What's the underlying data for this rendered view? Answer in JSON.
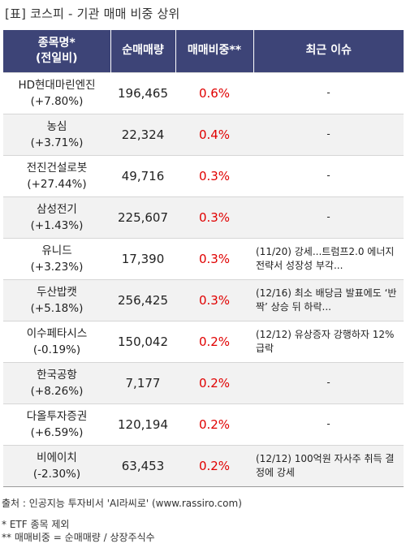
{
  "title": "[표] 코스피 - 기관 매매 비중 상위",
  "header": {
    "name_line1": "종목명*",
    "name_line2": "(전일비)",
    "volume": "순매매량",
    "ratio": "매매비중**",
    "issue": "최근 이슈"
  },
  "rows": [
    {
      "name": "HD현대마린엔진",
      "change": "(+7.80%)",
      "volume": "196,465",
      "ratio": "0.6%",
      "issue": "-"
    },
    {
      "name": "농심",
      "change": "(+3.71%)",
      "volume": "22,324",
      "ratio": "0.4%",
      "issue": "-"
    },
    {
      "name": "전진건설로봇",
      "change": "(+27.44%)",
      "volume": "49,716",
      "ratio": "0.3%",
      "issue": "-"
    },
    {
      "name": "삼성전기",
      "change": "(+1.43%)",
      "volume": "225,607",
      "ratio": "0.3%",
      "issue": "-"
    },
    {
      "name": "유니드",
      "change": "(+3.23%)",
      "volume": "17,390",
      "ratio": "0.3%",
      "issue": "(11/20) 강세...트럼프2.0 에너지 전략서 성장성 부각..."
    },
    {
      "name": "두산밥캣",
      "change": "(+5.18%)",
      "volume": "256,425",
      "ratio": "0.3%",
      "issue": "(12/16) 최소 배당금 발표에도 ‘반짝’ 상승 뒤 하락..."
    },
    {
      "name": "이수페타시스",
      "change": "(-0.19%)",
      "volume": "150,042",
      "ratio": "0.2%",
      "issue": "(12/12) 유상증자 강행하자 12% 급락"
    },
    {
      "name": "한국공항",
      "change": "(+8.26%)",
      "volume": "7,177",
      "ratio": "0.2%",
      "issue": "-"
    },
    {
      "name": "다올투자증권",
      "change": "(+6.59%)",
      "volume": "120,194",
      "ratio": "0.2%",
      "issue": "-"
    },
    {
      "name": "비에이치",
      "change": "(-2.30%)",
      "volume": "63,453",
      "ratio": "0.2%",
      "issue": "(12/12) 100억원 자사주 취득 결정에 강세"
    }
  ],
  "footer": {
    "source": "출처 : 인공지능 투자비서 'AI라씨로' (www.rassiro.com)",
    "note1": "* ETF 종목 제외",
    "note2": "** 매매비중 = 순매매량 / 상장주식수"
  },
  "colors": {
    "header_bg": "#3d4477",
    "ratio_text": "#e00000",
    "stripe": "#f2f2f2"
  }
}
